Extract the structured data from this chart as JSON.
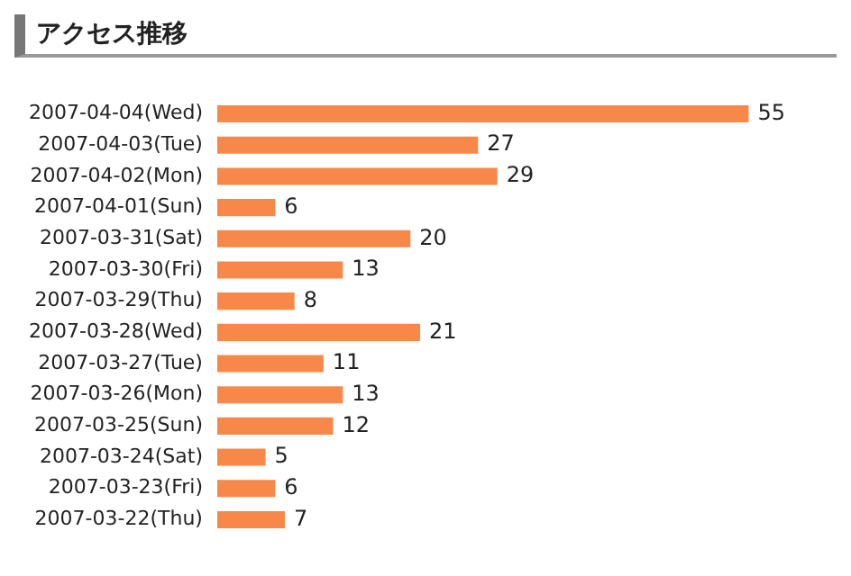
{
  "chart_data": {
    "type": "bar",
    "title": "アクセス推移",
    "orientation": "horizontal",
    "categories": [
      "2007-04-04(Wed)",
      "2007-04-03(Tue)",
      "2007-04-02(Mon)",
      "2007-04-01(Sun)",
      "2007-03-31(Sat)",
      "2007-03-30(Fri)",
      "2007-03-29(Thu)",
      "2007-03-28(Wed)",
      "2007-03-27(Tue)",
      "2007-03-26(Mon)",
      "2007-03-25(Sun)",
      "2007-03-24(Sat)",
      "2007-03-23(Fri)",
      "2007-03-22(Thu)"
    ],
    "values": [
      55,
      27,
      29,
      6,
      20,
      13,
      8,
      21,
      11,
      13,
      12,
      5,
      6,
      7
    ],
    "color": "#f7884a",
    "data_labels": true,
    "grid": false,
    "legend": false
  }
}
